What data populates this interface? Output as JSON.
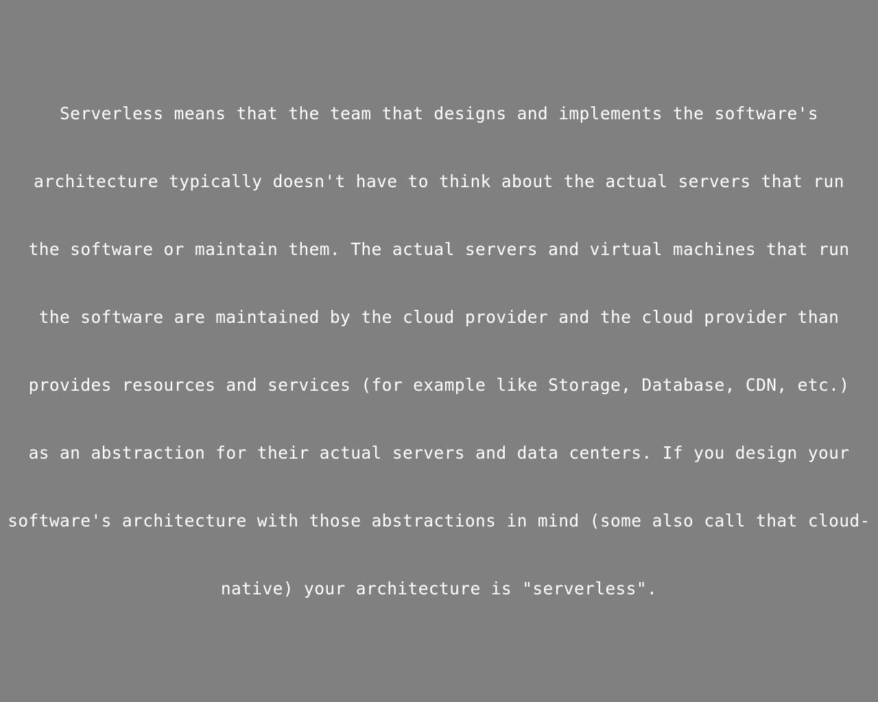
{
  "document": {
    "lines": [
      "Serverless means that the team that designs and implements the software's",
      "architecture typically doesn't have to think about the actual servers that run",
      "the software or maintain them. The actual servers and virtual machines that run",
      "the software are maintained by the cloud provider and the cloud provider than",
      "provides resources and services (for example like Storage, Database, CDN, etc.)",
      "as an abstraction for their actual servers and data centers. If you design your",
      "software's architecture with those abstractions in mind (some also call that cloud-",
      "native) your architecture is \"serverless\"."
    ]
  },
  "colors": {
    "background": "#808080",
    "text": "#ffffff"
  }
}
